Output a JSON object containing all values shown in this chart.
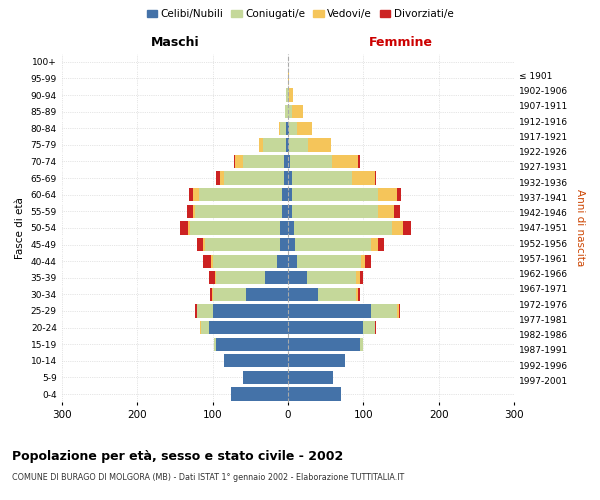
{
  "age_groups": [
    "0-4",
    "5-9",
    "10-14",
    "15-19",
    "20-24",
    "25-29",
    "30-34",
    "35-39",
    "40-44",
    "45-49",
    "50-54",
    "55-59",
    "60-64",
    "65-69",
    "70-74",
    "75-79",
    "80-84",
    "85-89",
    "90-94",
    "95-99",
    "100+"
  ],
  "birth_years": [
    "1997-2001",
    "1992-1996",
    "1987-1991",
    "1982-1986",
    "1977-1981",
    "1972-1976",
    "1967-1971",
    "1962-1966",
    "1957-1961",
    "1952-1956",
    "1947-1951",
    "1942-1946",
    "1937-1941",
    "1932-1936",
    "1927-1931",
    "1922-1926",
    "1917-1921",
    "1912-1916",
    "1907-1911",
    "1902-1906",
    "≤ 1901"
  ],
  "males": {
    "celibi": [
      75,
      60,
      85,
      95,
      105,
      100,
      55,
      30,
      15,
      10,
      10,
      8,
      8,
      5,
      5,
      3,
      2,
      0,
      0,
      0,
      0
    ],
    "coniugati": [
      0,
      0,
      0,
      3,
      10,
      20,
      45,
      65,
      85,
      100,
      120,
      115,
      110,
      80,
      55,
      30,
      8,
      4,
      2,
      0,
      0
    ],
    "vedovi": [
      0,
      0,
      0,
      0,
      1,
      1,
      1,
      2,
      2,
      2,
      3,
      3,
      8,
      5,
      10,
      5,
      2,
      0,
      0,
      0,
      0
    ],
    "divorziati": [
      0,
      0,
      0,
      0,
      1,
      2,
      2,
      8,
      10,
      8,
      10,
      8,
      5,
      5,
      2,
      0,
      0,
      0,
      0,
      0,
      0
    ]
  },
  "females": {
    "nubili": [
      70,
      60,
      75,
      95,
      100,
      110,
      40,
      25,
      12,
      10,
      8,
      5,
      5,
      5,
      3,
      2,
      2,
      0,
      0,
      0,
      0
    ],
    "coniugate": [
      0,
      0,
      0,
      5,
      15,
      35,
      50,
      65,
      85,
      100,
      130,
      115,
      115,
      80,
      55,
      25,
      10,
      5,
      2,
      0,
      0
    ],
    "vedove": [
      0,
      0,
      0,
      0,
      1,
      2,
      3,
      5,
      5,
      10,
      15,
      20,
      25,
      30,
      35,
      30,
      20,
      15,
      5,
      2,
      0
    ],
    "divorziate": [
      0,
      0,
      0,
      0,
      1,
      2,
      2,
      5,
      8,
      8,
      10,
      8,
      5,
      2,
      2,
      0,
      0,
      0,
      0,
      0,
      0
    ]
  },
  "colors": {
    "celibi": "#4472a8",
    "coniugati": "#c5d89a",
    "vedovi": "#f5c55a",
    "divorziati": "#cc2222"
  },
  "title": "Popolazione per età, sesso e stato civile - 2002",
  "subtitle": "COMUNE DI BURAGO DI MOLGORA (MB) - Dati ISTAT 1° gennaio 2002 - Elaborazione TUTTITALIA.IT",
  "xlim": 300,
  "xlabel_left": "Maschi",
  "xlabel_right": "Femmine",
  "ylabel": "Fasce di età",
  "ylabel_right": "Anni di nascita",
  "legend_labels": [
    "Celibi/Nubili",
    "Coniugati/e",
    "Vedovi/e",
    "Divorziati/e"
  ],
  "background_color": "#ffffff"
}
